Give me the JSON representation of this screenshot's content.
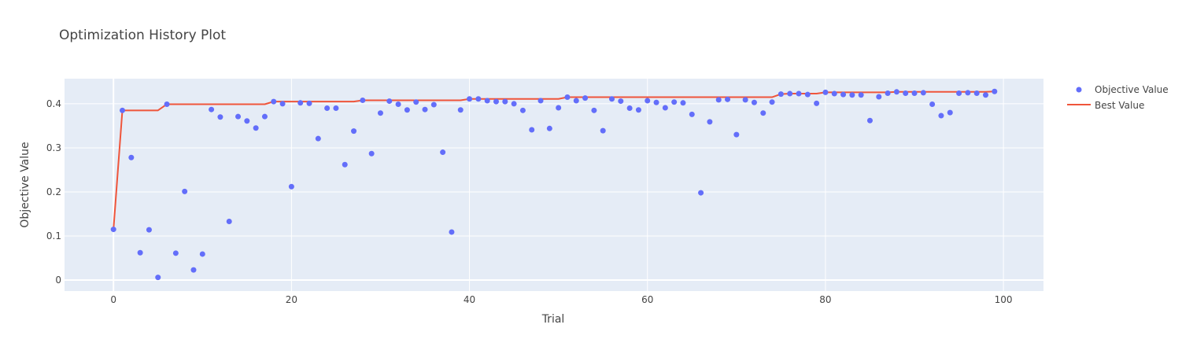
{
  "chart_data": {
    "type": "scatter",
    "title": "Optimization History Plot",
    "xlabel": "Trial",
    "ylabel": "Objective Value",
    "xlim": [
      -5.5,
      104.5
    ],
    "ylim": [
      -0.025,
      0.457
    ],
    "xticks": [
      0,
      20,
      40,
      60,
      80,
      100
    ],
    "yticks": [
      0,
      0.1,
      0.2,
      0.3,
      0.4
    ],
    "ytick_labels": [
      "0",
      "0.1",
      "0.2",
      "0.3",
      "0.4"
    ],
    "background": "#E5ECF6",
    "grid": true,
    "legend_position": "top-right",
    "series": [
      {
        "name": "Objective Value",
        "kind": "markers",
        "color": "#636EFA",
        "x": [
          0,
          1,
          2,
          3,
          4,
          5,
          6,
          7,
          8,
          9,
          10,
          11,
          12,
          13,
          14,
          15,
          16,
          17,
          18,
          19,
          20,
          21,
          22,
          23,
          24,
          25,
          26,
          27,
          28,
          29,
          30,
          31,
          32,
          33,
          34,
          35,
          36,
          37,
          38,
          39,
          40,
          41,
          42,
          43,
          44,
          45,
          46,
          47,
          48,
          49,
          50,
          51,
          52,
          53,
          54,
          55,
          56,
          57,
          58,
          59,
          60,
          61,
          62,
          63,
          64,
          65,
          66,
          67,
          68,
          69,
          70,
          71,
          72,
          73,
          74,
          75,
          76,
          77,
          78,
          79,
          80,
          81,
          82,
          83,
          84,
          85,
          86,
          87,
          88,
          89,
          90,
          91,
          92,
          93,
          94,
          95,
          96,
          97,
          98,
          99
        ],
        "y": [
          0.115,
          0.385,
          0.278,
          0.062,
          0.114,
          0.006,
          0.399,
          0.061,
          0.201,
          0.023,
          0.059,
          0.387,
          0.37,
          0.133,
          0.371,
          0.361,
          0.345,
          0.371,
          0.405,
          0.4,
          0.212,
          0.402,
          0.401,
          0.321,
          0.39,
          0.39,
          0.262,
          0.338,
          0.408,
          0.287,
          0.379,
          0.406,
          0.399,
          0.386,
          0.404,
          0.387,
          0.398,
          0.29,
          0.109,
          0.386,
          0.411,
          0.411,
          0.407,
          0.405,
          0.405,
          0.4,
          0.385,
          0.341,
          0.407,
          0.344,
          0.391,
          0.415,
          0.407,
          0.413,
          0.385,
          0.339,
          0.411,
          0.406,
          0.39,
          0.386,
          0.407,
          0.403,
          0.391,
          0.404,
          0.402,
          0.376,
          0.198,
          0.359,
          0.409,
          0.41,
          0.33,
          0.409,
          0.403,
          0.379,
          0.404,
          0.422,
          0.423,
          0.423,
          0.421,
          0.401,
          0.426,
          0.423,
          0.421,
          0.42,
          0.42,
          0.362,
          0.416,
          0.424,
          0.427,
          0.424,
          0.424,
          0.425,
          0.399,
          0.373,
          0.38,
          0.424,
          0.425,
          0.424,
          0.42,
          0.428
        ]
      },
      {
        "name": "Best Value",
        "kind": "line",
        "color": "#EF553B",
        "x": [
          0,
          1,
          2,
          3,
          4,
          5,
          6,
          7,
          8,
          9,
          10,
          11,
          12,
          13,
          14,
          15,
          16,
          17,
          18,
          19,
          20,
          21,
          22,
          23,
          24,
          25,
          26,
          27,
          28,
          29,
          30,
          31,
          32,
          33,
          34,
          35,
          36,
          37,
          38,
          39,
          40,
          41,
          42,
          43,
          44,
          45,
          46,
          47,
          48,
          49,
          50,
          51,
          52,
          53,
          54,
          55,
          56,
          57,
          58,
          59,
          60,
          61,
          62,
          63,
          64,
          65,
          66,
          67,
          68,
          69,
          70,
          71,
          72,
          73,
          74,
          75,
          76,
          77,
          78,
          79,
          80,
          81,
          82,
          83,
          84,
          85,
          86,
          87,
          88,
          89,
          90,
          91,
          92,
          93,
          94,
          95,
          96,
          97,
          98,
          99
        ],
        "y": [
          0.115,
          0.385,
          0.385,
          0.385,
          0.385,
          0.385,
          0.399,
          0.399,
          0.399,
          0.399,
          0.399,
          0.399,
          0.399,
          0.399,
          0.399,
          0.399,
          0.399,
          0.399,
          0.405,
          0.405,
          0.405,
          0.405,
          0.405,
          0.405,
          0.405,
          0.405,
          0.405,
          0.405,
          0.408,
          0.408,
          0.408,
          0.408,
          0.408,
          0.408,
          0.408,
          0.408,
          0.408,
          0.408,
          0.408,
          0.408,
          0.411,
          0.411,
          0.411,
          0.411,
          0.411,
          0.411,
          0.411,
          0.411,
          0.411,
          0.411,
          0.411,
          0.415,
          0.415,
          0.415,
          0.415,
          0.415,
          0.415,
          0.415,
          0.415,
          0.415,
          0.415,
          0.415,
          0.415,
          0.415,
          0.415,
          0.415,
          0.415,
          0.415,
          0.415,
          0.415,
          0.415,
          0.415,
          0.415,
          0.415,
          0.415,
          0.422,
          0.423,
          0.423,
          0.423,
          0.423,
          0.426,
          0.426,
          0.426,
          0.426,
          0.426,
          0.426,
          0.426,
          0.426,
          0.427,
          0.427,
          0.427,
          0.427,
          0.427,
          0.427,
          0.427,
          0.427,
          0.427,
          0.427,
          0.427,
          0.428
        ]
      }
    ]
  }
}
